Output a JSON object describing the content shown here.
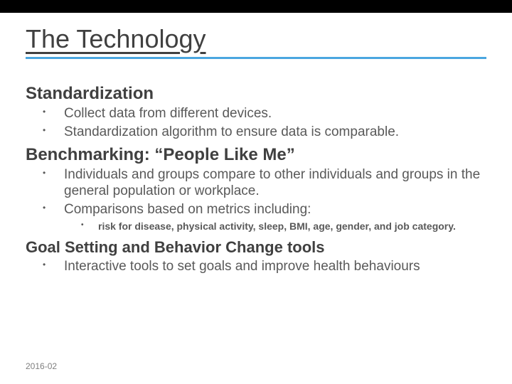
{
  "colors": {
    "top_band": "#000000",
    "title_text": "#404040",
    "title_rule": "#4aa6e0",
    "heading_text": "#404040",
    "body_text": "#595959",
    "footer_text": "#7f7f7f",
    "background": "#ffffff"
  },
  "title": "The Technology",
  "sections": [
    {
      "heading": "Standardization",
      "level": "h2",
      "bullets": [
        {
          "text": "Collect data from different devices."
        },
        {
          "text": "Standardization algorithm to ensure data is comparable."
        }
      ]
    },
    {
      "heading": "Benchmarking: “People Like Me”",
      "level": "h2",
      "bullets": [
        {
          "text": "Individuals and groups compare to other individuals and groups in the general population or workplace."
        },
        {
          "text": "Comparisons based on metrics including:",
          "sub": [
            {
              "text": "risk for disease, physical activity, sleep, BMI, age, gender, and job category."
            }
          ]
        }
      ]
    },
    {
      "heading": "Goal Setting and Behavior Change tools",
      "level": "h2b",
      "bullets": [
        {
          "text": "Interactive tools to set goals and improve health behaviours"
        }
      ]
    }
  ],
  "footer_date": "2016-02"
}
